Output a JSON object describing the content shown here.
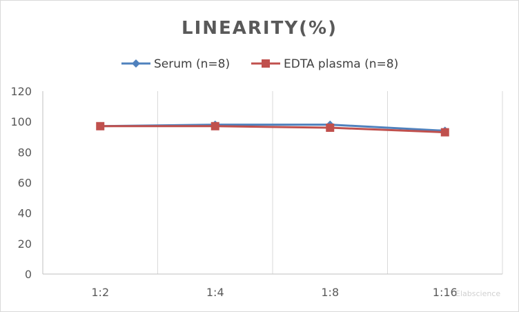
{
  "chart_data": {
    "type": "line",
    "title": "LINEARITY(%)",
    "categories": [
      "1:2",
      "1:4",
      "1:8",
      "1:16"
    ],
    "series": [
      {
        "name": "Serum (n=8)",
        "values": [
          97,
          98,
          98,
          94
        ],
        "color": "#4f81bd",
        "marker": "diamond"
      },
      {
        "name": "EDTA plasma (n=8)",
        "values": [
          97,
          97,
          96,
          93
        ],
        "color": "#c0504d",
        "marker": "square"
      }
    ],
    "ylim": [
      0,
      120
    ],
    "yticks": [
      0,
      20,
      40,
      60,
      80,
      100,
      120
    ],
    "xlabel": "",
    "ylabel": "",
    "grid": "vertical",
    "legend_position": "top",
    "watermark": "Elabscience"
  }
}
